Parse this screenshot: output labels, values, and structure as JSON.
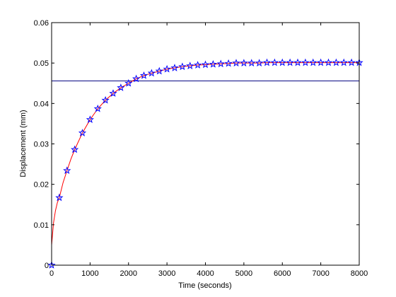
{
  "chart_data": {
    "type": "line",
    "title": "",
    "xlabel": "Time (seconds)",
    "ylabel": "Displacement (mm)",
    "xlim": [
      0,
      8000
    ],
    "ylim": [
      0,
      0.06
    ],
    "x_ticks": [
      0,
      1000,
      2000,
      3000,
      4000,
      5000,
      6000,
      7000,
      8000
    ],
    "x_tick_labels": [
      "0",
      "1000",
      "2000",
      "3000",
      "4000",
      "5000",
      "6000",
      "7000",
      "8000"
    ],
    "y_ticks": [
      0,
      0.01,
      0.02,
      0.03,
      0.04,
      0.05,
      0.06
    ],
    "y_tick_labels": [
      "0",
      "0.01",
      "0.02",
      "0.03",
      "0.04",
      "0.05",
      "0.06"
    ],
    "grid": false,
    "legend": null,
    "series": [
      {
        "style": "star markers",
        "color": "#0000ff",
        "x": [
          0,
          200,
          400,
          600,
          800,
          1000,
          1200,
          1400,
          1600,
          1800,
          2000,
          2200,
          2400,
          2600,
          2800,
          3000,
          3200,
          3400,
          3600,
          3800,
          4000,
          4200,
          4400,
          4600,
          4800,
          5000,
          5200,
          5400,
          5600,
          5800,
          6000,
          6200,
          6400,
          6600,
          6800,
          7000,
          7200,
          7400,
          7600,
          7800,
          8000
        ],
        "values": [
          0,
          0.0167,
          0.0234,
          0.0286,
          0.0327,
          0.036,
          0.0387,
          0.0408,
          0.0425,
          0.0439,
          0.045,
          0.0461,
          0.0469,
          0.0475,
          0.048,
          0.0485,
          0.0488,
          0.0491,
          0.0493,
          0.0495,
          0.0496,
          0.0497,
          0.0498,
          0.0499,
          0.05,
          0.05,
          0.05,
          0.05,
          0.0501,
          0.0501,
          0.0501,
          0.0501,
          0.0501,
          0.0501,
          0.0501,
          0.0501,
          0.0501,
          0.0501,
          0.0501,
          0.0501,
          0.0501
        ]
      },
      {
        "style": "line",
        "color": "#ff0000",
        "x": [
          0,
          50,
          100,
          150,
          200,
          300,
          400,
          500,
          600,
          800,
          1000,
          1200,
          1400,
          1600,
          1800,
          2000,
          2200,
          2400,
          2600,
          2800,
          3000,
          3200,
          3400,
          3600,
          3800,
          4000,
          4200,
          4400,
          4600,
          4800,
          5000,
          5200,
          5400,
          5600,
          5800,
          6000,
          6200,
          6400,
          6600,
          6800,
          7000,
          7200,
          7400,
          7600,
          7800,
          8000
        ],
        "values": [
          0.005,
          0.0105,
          0.0135,
          0.0155,
          0.0167,
          0.0205,
          0.0234,
          0.0262,
          0.0286,
          0.0327,
          0.036,
          0.0387,
          0.0408,
          0.0425,
          0.0439,
          0.045,
          0.0461,
          0.0469,
          0.0475,
          0.048,
          0.0485,
          0.0488,
          0.0491,
          0.0493,
          0.0495,
          0.0496,
          0.0497,
          0.0498,
          0.0499,
          0.05,
          0.05,
          0.05,
          0.05,
          0.0501,
          0.0501,
          0.0501,
          0.0501,
          0.0501,
          0.0501,
          0.0501,
          0.0501,
          0.0501,
          0.0501,
          0.0501,
          0.0501,
          0.0501
        ]
      },
      {
        "style": "horizontal line",
        "color": "#000080",
        "x": [
          0,
          8000
        ],
        "values": [
          0.0456,
          0.0456
        ]
      }
    ]
  }
}
